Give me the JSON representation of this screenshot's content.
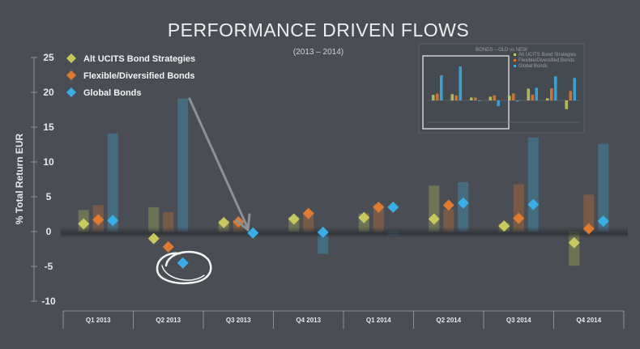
{
  "chart_data": {
    "type": "bar",
    "title": "PERFORMANCE DRIVEN FLOWS",
    "subtitle": "(2013 – 2014)",
    "ylabel": "% Total Return EUR",
    "ylim": [
      -10,
      25
    ],
    "yticks": [
      -10,
      -5,
      0,
      5,
      10,
      15,
      20,
      25
    ],
    "categories": [
      "Q1 2013",
      "Q2 2013",
      "Q3 2013",
      "Q4 2013",
      "Q1 2014",
      "Q2 2014",
      "Q3 2014",
      "Q4 2014"
    ],
    "legend_position": "top-left",
    "series": [
      {
        "name": "Alt UCITS Bond Strategies",
        "color": "#c7c95e",
        "bar_values": [
          3.1,
          3.5,
          1.6,
          2.1,
          2.6,
          6.6,
          1.2,
          -4.9
        ],
        "marker_values": [
          1.1,
          -1.0,
          1.3,
          1.8,
          2.0,
          1.8,
          0.8,
          -1.6
        ]
      },
      {
        "name": "Flexible/Diversified Bonds",
        "color": "#e07a30",
        "bar_values": [
          3.8,
          2.8,
          1.6,
          2.8,
          3.9,
          3.2,
          6.8,
          5.3
        ],
        "marker_values": [
          1.7,
          -2.2,
          1.4,
          2.6,
          3.5,
          3.8,
          1.9,
          0.4
        ]
      },
      {
        "name": "Global Bonds",
        "color": "#3aaee6",
        "bar_values": [
          14.1,
          19.1,
          -0.4,
          -3.2,
          -0.6,
          7.1,
          13.5,
          12.6
        ],
        "marker_values": [
          1.6,
          -4.5,
          -0.2,
          -0.1,
          3.5,
          4.1,
          3.9,
          1.5
        ]
      }
    ],
    "inset": {
      "title": "BONDS – OLD vs NEW",
      "legend": [
        "Alt UCITS Bond Strategies",
        "Flexible/Diversified Bonds",
        "Global Bonds"
      ]
    }
  }
}
